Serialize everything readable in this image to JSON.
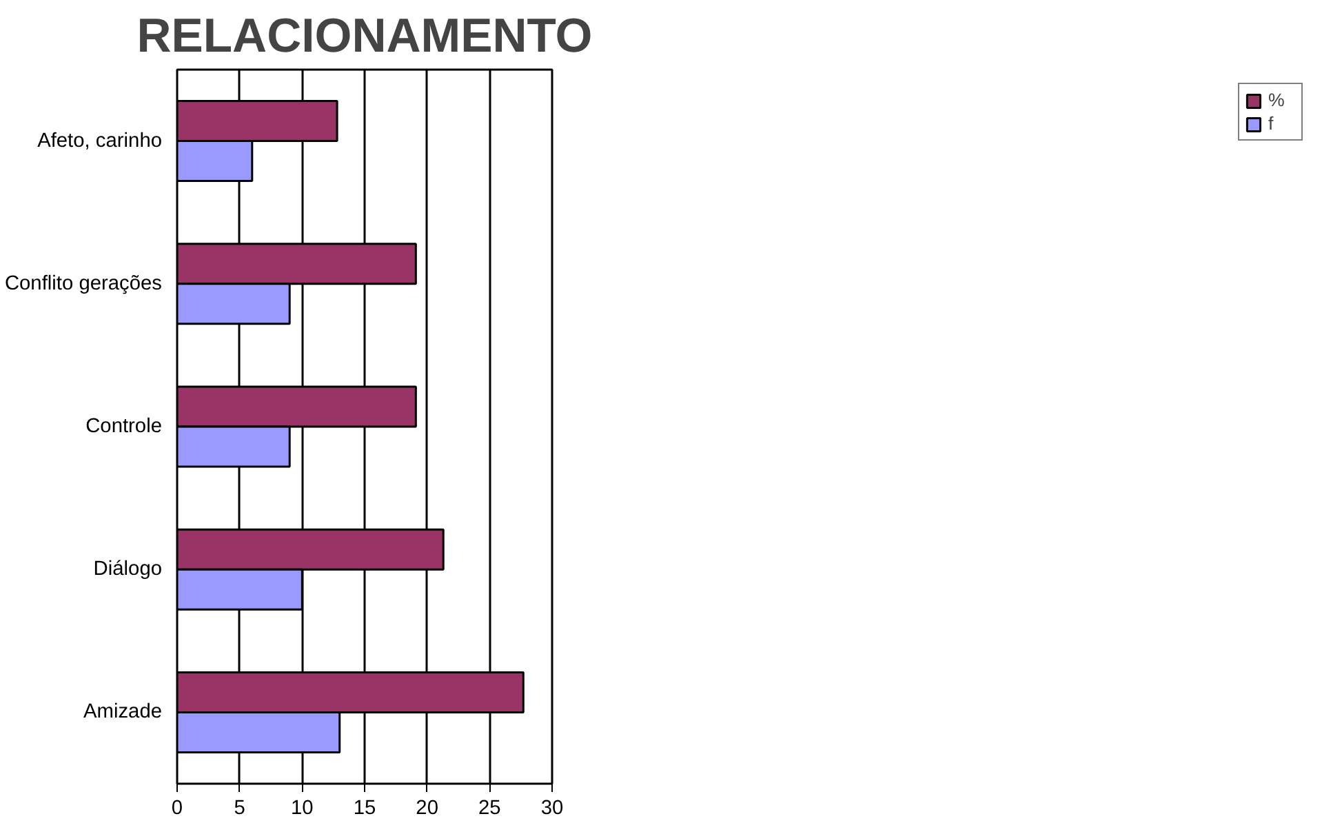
{
  "chart_data": {
    "type": "bar",
    "orientation": "horizontal",
    "title": "RELACIONAMENTO",
    "categories": [
      "Afeto, carinho",
      "Conflito gerações",
      "Controle",
      "Diálogo",
      "Amizade"
    ],
    "series": [
      {
        "name": "%",
        "color": "#993366",
        "values": [
          12.8,
          19.1,
          19.1,
          21.3,
          27.7
        ]
      },
      {
        "name": "f",
        "color": "#9999ff",
        "values": [
          6,
          9,
          9,
          10,
          13
        ]
      }
    ],
    "xlim": [
      0,
      30
    ],
    "xticks": [
      0,
      5,
      10,
      15,
      20,
      25,
      30
    ],
    "grid": "x",
    "legend": "right"
  }
}
